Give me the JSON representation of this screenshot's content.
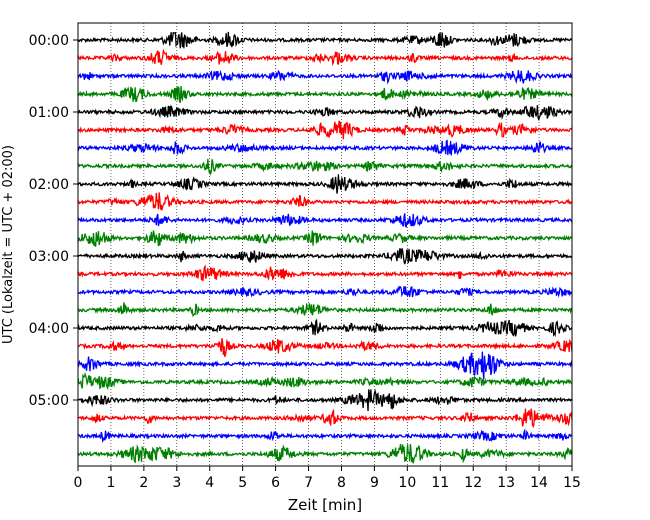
{
  "chart_data": {
    "type": "line",
    "xlabel": "Zeit  [min]",
    "ylabel": "UTC (Lokalzeit = UTC + 02:00)",
    "xlim": [
      0,
      15
    ],
    "x_ticks": [
      0,
      1,
      2,
      3,
      4,
      5,
      6,
      7,
      8,
      9,
      10,
      11,
      12,
      13,
      14,
      15
    ],
    "x_tick_labels": [
      "0",
      "1",
      "2",
      "3",
      "4",
      "5",
      "6",
      "7",
      "8",
      "9",
      "10",
      "11",
      "12",
      "13",
      "14",
      "15"
    ],
    "y_tick_labels": [
      "00:00",
      "01:00",
      "02:00",
      "03:00",
      "04:00",
      "05:00"
    ],
    "y_tick_trace_index": [
      0,
      4,
      8,
      12,
      16,
      20
    ],
    "trace_count": 24,
    "trace_interval_min": 15,
    "trace_colors": [
      "#000000",
      "#ff0000",
      "#0000ff",
      "#008000"
    ],
    "grid_x": true,
    "grid_style": "dotted",
    "notable_events": [
      {
        "trace": 13,
        "x_min": 11.6,
        "color": "#ff0000"
      },
      {
        "trace": 13,
        "x_min": 12.8,
        "color": "#ff0000"
      }
    ]
  }
}
